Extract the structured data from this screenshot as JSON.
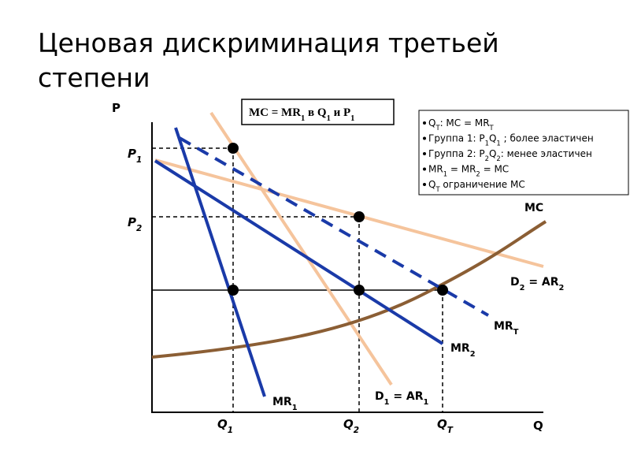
{
  "title": [
    "Ценовая дискриминация третьей",
    "степени"
  ],
  "box": [
    [
      "MC = MR",
      "1"
    ],
    [
      " в Q",
      "1"
    ],
    [
      " и P",
      "1"
    ]
  ],
  "notes": [
    [
      [
        "Q",
        "T"
      ],
      [
        ": MC = MR",
        "T"
      ]
    ],
    [
      [
        "Группа 1: P",
        "1"
      ],
      [
        "Q",
        "1"
      ],
      [
        " ; более эластичен"
      ]
    ],
    [
      [
        "Группа 2: P",
        "2"
      ],
      [
        "Q",
        "2"
      ],
      [
        ": менее эластичен"
      ]
    ],
    [
      [
        "MR",
        "1"
      ],
      [
        " = MR",
        "2"
      ],
      [
        " = MC"
      ]
    ],
    [
      [
        "Q",
        "T"
      ],
      [
        " ограничение MC"
      ]
    ]
  ],
  "axis_labels": {
    "p": [
      [
        "P"
      ]
    ],
    "q": [
      [
        "Q"
      ]
    ],
    "p1": [
      [
        "P",
        "1"
      ]
    ],
    "p2": [
      [
        "P",
        "2"
      ]
    ],
    "q1": [
      [
        "Q",
        "1"
      ]
    ],
    "q2": [
      [
        "Q",
        "2"
      ]
    ],
    "qt": [
      [
        "Q",
        "T"
      ]
    ]
  },
  "curve_labels": {
    "mc": [
      [
        "MC"
      ]
    ],
    "d2": [
      [
        "D",
        "2"
      ],
      [
        " = AR",
        "2"
      ]
    ],
    "mrt": [
      [
        "MR",
        "T"
      ]
    ],
    "mr2": [
      [
        "MR",
        "2"
      ]
    ],
    "mr1": [
      [
        "MR",
        "1"
      ]
    ],
    "d1": [
      [
        "D",
        "1"
      ],
      [
        " = AR",
        "1"
      ]
    ]
  }
}
